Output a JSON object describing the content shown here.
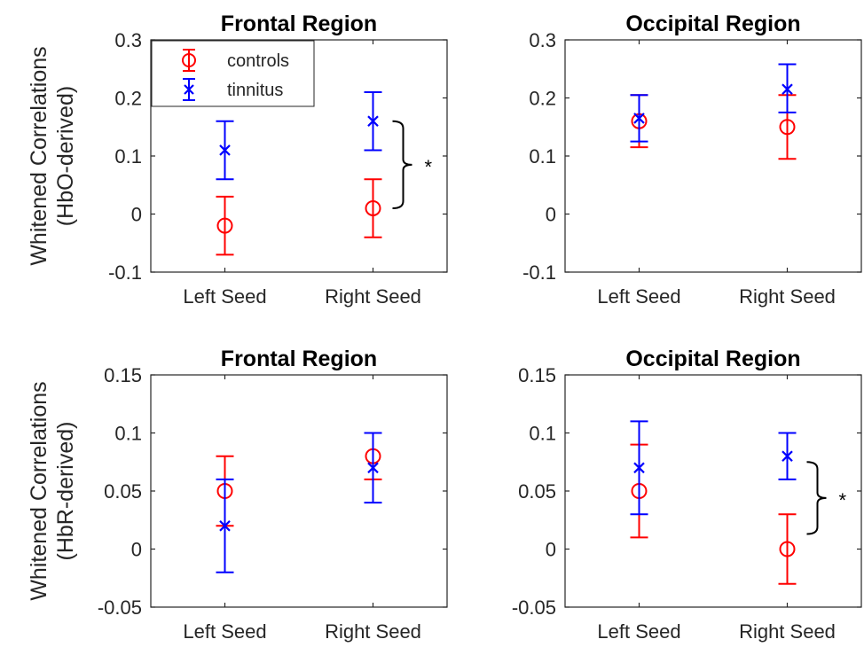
{
  "figure": {
    "row_ylabels": [
      [
        "Whitened Correlations",
        "(HbO-derived)"
      ],
      [
        "Whitened Correlations",
        "(HbR-derived)"
      ]
    ],
    "legend": [
      {
        "label": "controls",
        "marker": "circle",
        "color": "#ff0000"
      },
      {
        "label": "tinnitus",
        "marker": "x",
        "color": "#0000ff"
      }
    ]
  },
  "chart_data": [
    {
      "type": "scatter",
      "title": "Frontal Region",
      "categories": [
        "Left Seed",
        "Right Seed"
      ],
      "ylim": [
        -0.1,
        0.3
      ],
      "yticks": [
        -0.1,
        0,
        0.1,
        0.2,
        0.3
      ],
      "ytick_labels": [
        "-0.1",
        "0",
        "0.1",
        "0.2",
        "0.3"
      ],
      "series": [
        {
          "name": "controls",
          "color": "#ff0000",
          "marker": "circle",
          "values": [
            -0.02,
            0.01
          ],
          "lower": [
            -0.07,
            -0.04
          ],
          "upper": [
            0.03,
            0.06
          ]
        },
        {
          "name": "tinnitus",
          "color": "#0000ff",
          "marker": "x",
          "values": [
            0.11,
            0.16
          ],
          "lower": [
            0.06,
            0.11
          ],
          "upper": [
            0.16,
            0.21
          ]
        }
      ],
      "annotation": {
        "text": "*",
        "category": "Right Seed",
        "from": 0.16,
        "to": 0.01
      },
      "legend": true
    },
    {
      "type": "scatter",
      "title": "Occipital Region",
      "categories": [
        "Left Seed",
        "Right Seed"
      ],
      "ylim": [
        -0.1,
        0.3
      ],
      "yticks": [
        -0.1,
        0,
        0.1,
        0.2,
        0.3
      ],
      "ytick_labels": [
        "-0.1",
        "0",
        "0.1",
        "0.2",
        "0.3"
      ],
      "series": [
        {
          "name": "controls",
          "color": "#ff0000",
          "marker": "circle",
          "values": [
            0.16,
            0.15
          ],
          "lower": [
            0.115,
            0.095
          ],
          "upper": [
            0.205,
            0.205
          ]
        },
        {
          "name": "tinnitus",
          "color": "#0000ff",
          "marker": "x",
          "values": [
            0.165,
            0.215
          ],
          "lower": [
            0.125,
            0.175
          ],
          "upper": [
            0.205,
            0.258
          ]
        }
      ],
      "annotation": null,
      "legend": false
    },
    {
      "type": "scatter",
      "title": "Frontal Region",
      "categories": [
        "Left Seed",
        "Right Seed"
      ],
      "ylim": [
        -0.05,
        0.15
      ],
      "yticks": [
        -0.05,
        0,
        0.05,
        0.1,
        0.15
      ],
      "ytick_labels": [
        "-0.05",
        "0",
        "0.05",
        "0.1",
        "0.15"
      ],
      "series": [
        {
          "name": "controls",
          "color": "#ff0000",
          "marker": "circle",
          "values": [
            0.05,
            0.08
          ],
          "lower": [
            0.02,
            0.06
          ],
          "upper": [
            0.08,
            0.1
          ]
        },
        {
          "name": "tinnitus",
          "color": "#0000ff",
          "marker": "x",
          "values": [
            0.02,
            0.07
          ],
          "lower": [
            -0.02,
            0.04
          ],
          "upper": [
            0.06,
            0.1
          ]
        }
      ],
      "annotation": null,
      "legend": false
    },
    {
      "type": "scatter",
      "title": "Occipital Region",
      "categories": [
        "Left Seed",
        "Right Seed"
      ],
      "ylim": [
        -0.05,
        0.15
      ],
      "yticks": [
        -0.05,
        0,
        0.05,
        0.1,
        0.15
      ],
      "ytick_labels": [
        "-0.05",
        "0",
        "0.05",
        "0.1",
        "0.15"
      ],
      "series": [
        {
          "name": "controls",
          "color": "#ff0000",
          "marker": "circle",
          "values": [
            0.05,
            0.0
          ],
          "lower": [
            0.01,
            -0.03
          ],
          "upper": [
            0.09,
            0.03
          ]
        },
        {
          "name": "tinnitus",
          "color": "#0000ff",
          "marker": "x",
          "values": [
            0.07,
            0.08
          ],
          "lower": [
            0.03,
            0.06
          ],
          "upper": [
            0.11,
            0.1
          ]
        }
      ],
      "annotation": {
        "text": "*",
        "category": "Right Seed",
        "from": 0.075,
        "to": 0.013
      },
      "legend": false
    }
  ]
}
